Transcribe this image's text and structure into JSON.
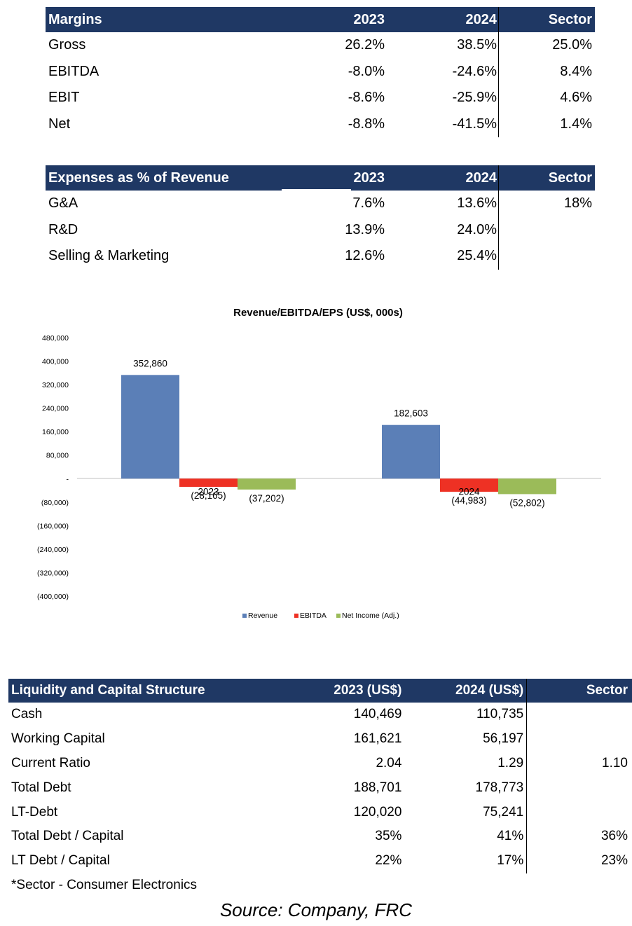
{
  "margins": {
    "headers": [
      "Margins",
      "2023",
      "2024",
      "Sector"
    ],
    "rows": [
      [
        "Gross",
        "26.2%",
        "38.5%",
        "25.0%"
      ],
      [
        "EBITDA",
        "-8.0%",
        "-24.6%",
        "8.4%"
      ],
      [
        "EBIT",
        "-8.6%",
        "-25.9%",
        "4.6%"
      ],
      [
        "Net",
        "-8.8%",
        "-41.5%",
        "1.4%"
      ]
    ]
  },
  "expenses": {
    "headers": [
      "Expenses as % of Revenue",
      "2023",
      "2024",
      "Sector"
    ],
    "rows": [
      [
        "G&A",
        "7.6%",
        "13.6%",
        "18%"
      ],
      [
        "R&D",
        "13.9%",
        "24.0%",
        ""
      ],
      [
        "Selling & Marketing",
        "12.6%",
        "25.4%",
        ""
      ]
    ]
  },
  "chart_data": {
    "type": "bar",
    "title": "Revenue/EBITDA/EPS (US$, 000s)",
    "categories": [
      "2023",
      "2024"
    ],
    "series": [
      {
        "name": "Revenue",
        "values": [
          352860,
          182603
        ],
        "labels": [
          "352,860",
          "182,603"
        ],
        "color": "#5b7fb7"
      },
      {
        "name": "EBITDA",
        "values": [
          -28165,
          -44983
        ],
        "labels": [
          "(28,165)",
          "(44,983)"
        ],
        "color": "#ee3124"
      },
      {
        "name": "Net Income (Adj.)",
        "values": [
          -37202,
          -52802
        ],
        "labels": [
          "(37,202)",
          "(52,802)"
        ],
        "color": "#9bbb59"
      }
    ],
    "ylim": [
      -400000,
      480000
    ],
    "yticks": [
      480000,
      400000,
      320000,
      240000,
      160000,
      80000,
      0,
      -80000,
      -160000,
      -240000,
      -320000,
      -400000
    ],
    "ytick_labels": [
      "480,000",
      "400,000",
      "320,000",
      "240,000",
      "160,000",
      "80,000",
      "-",
      "(80,000)",
      "(160,000)",
      "(240,000)",
      "(320,000)",
      "(400,000)"
    ],
    "legend_position": "bottom",
    "grid": false
  },
  "liquidity": {
    "headers": [
      "Liquidity and Capital Structure",
      "2023 (US$)",
      "2024 (US$)",
      "Sector"
    ],
    "rows": [
      [
        "Cash",
        "140,469",
        "110,735",
        ""
      ],
      [
        "Working Capital",
        "161,621",
        "56,197",
        ""
      ],
      [
        "Current Ratio",
        "2.04",
        "1.29",
        "1.10"
      ],
      [
        "Total Debt",
        "188,701",
        "178,773",
        ""
      ],
      [
        "LT-Debt",
        "120,020",
        "75,241",
        ""
      ],
      [
        "Total Debt / Capital",
        "35%",
        "41%",
        "36%"
      ],
      [
        "LT Debt / Capital",
        "22%",
        "17%",
        "23%"
      ]
    ]
  },
  "footnote": "*Sector - Consumer Electronics",
  "source": "Source: Company, FRC"
}
